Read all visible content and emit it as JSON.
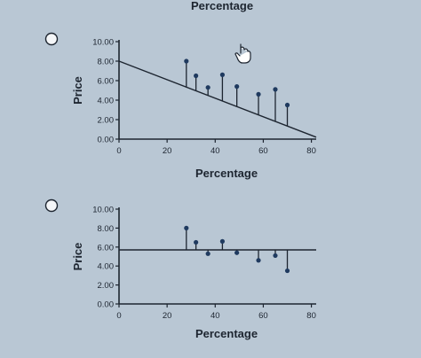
{
  "header": {
    "partial_title": "Percentage"
  },
  "options": [
    {
      "id": "option-a",
      "selected": false
    },
    {
      "id": "option-b",
      "selected": false
    }
  ],
  "chart_data": [
    {
      "type": "scatter",
      "variant": "residuals-to-line",
      "xlabel": "Percentage",
      "ylabel": "Price",
      "xlim": [
        0,
        82
      ],
      "ylim": [
        0,
        10
      ],
      "x_ticks": [
        "0",
        "20",
        "40",
        "60",
        "80"
      ],
      "y_ticks": [
        "0.00",
        "2.00",
        "4.00",
        "6.00",
        "8.00",
        "10.00"
      ],
      "line": {
        "x": [
          0,
          82
        ],
        "y": [
          8.0,
          0.2
        ]
      },
      "points": {
        "x": [
          28,
          32,
          37,
          43,
          49,
          58,
          65,
          70
        ],
        "y": [
          8.0,
          6.5,
          5.3,
          6.6,
          5.4,
          4.6,
          5.1,
          3.5
        ]
      },
      "colors": {
        "line": "#1d2530",
        "points": "#1f3a5f"
      }
    },
    {
      "type": "scatter",
      "variant": "residuals-to-line",
      "xlabel": "Percentage",
      "ylabel": "Price",
      "xlim": [
        0,
        82
      ],
      "ylim": [
        0,
        10
      ],
      "x_ticks": [
        "0",
        "20",
        "40",
        "60",
        "80"
      ],
      "y_ticks": [
        "0.00",
        "2.00",
        "4.00",
        "6.00",
        "8.00",
        "10.00"
      ],
      "line": {
        "x": [
          0,
          82
        ],
        "y": [
          5.7,
          5.7
        ]
      },
      "points": {
        "x": [
          28,
          32,
          37,
          43,
          49,
          58,
          65,
          70
        ],
        "y": [
          8.0,
          6.5,
          5.3,
          6.6,
          5.4,
          4.6,
          5.1,
          3.5
        ]
      },
      "colors": {
        "line": "#1d2530",
        "points": "#1f3a5f"
      }
    }
  ]
}
